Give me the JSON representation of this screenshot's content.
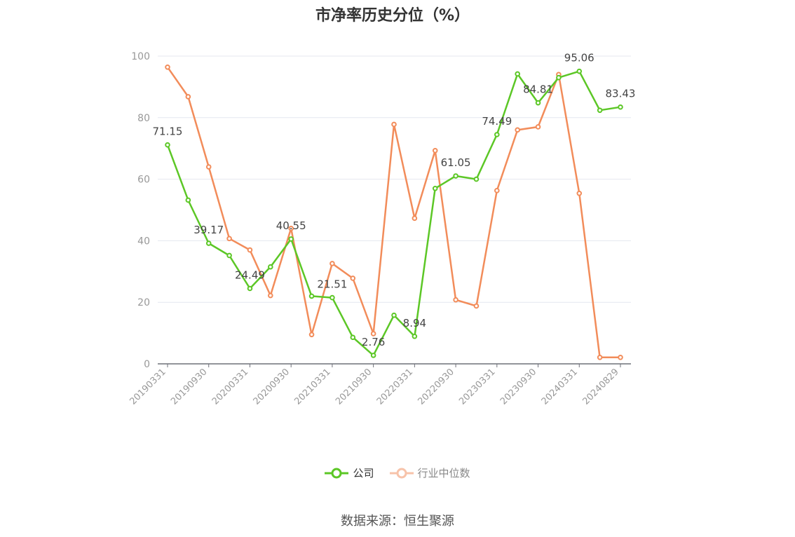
{
  "chart_data": {
    "type": "line",
    "title": "市净率历史分位（%）",
    "ylim": [
      0,
      100
    ],
    "yticks": [
      0,
      20,
      40,
      60,
      80,
      100
    ],
    "x": [
      "20190331",
      "20190630",
      "20190930",
      "20191231",
      "20200331",
      "20200630",
      "20200930",
      "20201231",
      "20210331",
      "20210630",
      "20210930",
      "20211231",
      "20220331",
      "20220630",
      "20220930",
      "20221231",
      "20230331",
      "20230630",
      "20230930",
      "20231231",
      "20240331",
      "20240630",
      "20240829"
    ],
    "xtick_labels": [
      "20190331",
      "20190930",
      "20200331",
      "20200930",
      "20210331",
      "20210930",
      "20220331",
      "20220930",
      "20230331",
      "20230930",
      "20240331",
      "20240829"
    ],
    "grid": true,
    "legend_position": "bottom",
    "series": [
      {
        "name": "公司",
        "color": "#5cc726",
        "values": [
          71.15,
          53.2,
          39.17,
          35.2,
          24.49,
          31.5,
          40.55,
          22.0,
          21.51,
          8.6,
          2.76,
          15.8,
          8.94,
          57.0,
          61.05,
          60.0,
          74.49,
          94.2,
          84.81,
          93.0,
          95.06,
          82.4,
          83.43
        ],
        "labels": {
          "0": "71.15",
          "2": "39.17",
          "4": "24.49",
          "6": "40.55",
          "8": "21.51",
          "10": "2.76",
          "12": "8.94",
          "14": "61.05",
          "16": "74.49",
          "18": "84.81",
          "20": "95.06",
          "22": "83.43"
        }
      },
      {
        "name": "行业中位数",
        "color": "#f28c5a",
        "values": [
          96.4,
          86.8,
          64.0,
          40.7,
          37.0,
          22.2,
          44.0,
          9.5,
          32.6,
          27.8,
          9.8,
          77.8,
          47.3,
          69.3,
          20.8,
          18.8,
          56.3,
          76.0,
          77.0,
          94.0,
          55.4,
          2.1,
          2.1
        ]
      }
    ]
  },
  "footer": {
    "source": "数据来源：恒生聚源"
  }
}
